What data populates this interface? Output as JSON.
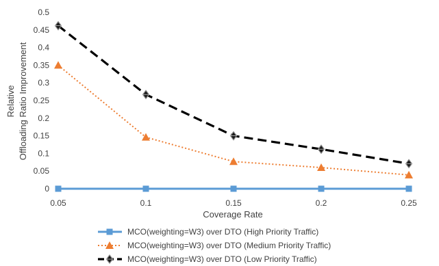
{
  "chart_data": {
    "type": "line",
    "x": [
      0.05,
      0.1,
      0.15,
      0.2,
      0.25
    ],
    "x_tick_labels": [
      "0.05",
      "0.1",
      "0.15",
      "0.2",
      "0.25"
    ],
    "y_tick_labels": [
      "0",
      "0.05",
      "0.1",
      "0.15",
      "0.2",
      "0.25",
      "0.3",
      "0.35",
      "0.4",
      "0.45",
      "0.5"
    ],
    "ylim": [
      0,
      0.5
    ],
    "xlabel": "Coverage Rate",
    "ylabel_line1": "Relative",
    "ylabel_line2": "Offloading Ratio Improvement",
    "grid": false,
    "legend_position": "bottom",
    "series": [
      {
        "name": "MCO(weighting=W3) over DTO (High Priority Traffic)",
        "values": [
          0,
          0,
          0,
          0,
          0
        ],
        "color": "#5b9bd5",
        "line_style": "solid",
        "marker": "square"
      },
      {
        "name": "MCO(weighting=W3) over DTO (Medium Priority Traffic)",
        "values": [
          0.35,
          0.146,
          0.077,
          0.06,
          0.039
        ],
        "color": "#ed7d31",
        "line_style": "dotted",
        "marker": "triangle"
      },
      {
        "name": "MCO(weighting=W3) over DTO (Low Priority Traffic)",
        "values": [
          0.462,
          0.267,
          0.15,
          0.112,
          0.071
        ],
        "color": "#000000",
        "line_style": "dashed",
        "marker": "diamond"
      }
    ]
  }
}
